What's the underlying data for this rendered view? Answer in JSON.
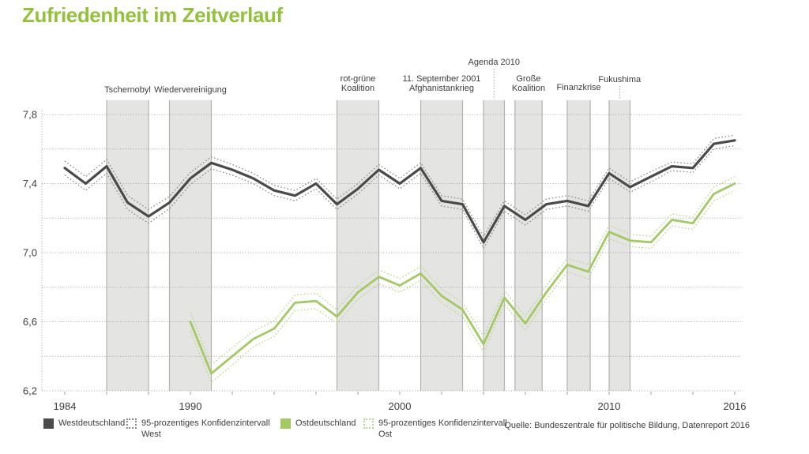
{
  "title": "Zufriedenheit im Zeitverlauf",
  "source": "Quelle: Bundeszentrale für politische Bildung, Datenreport 2016",
  "legend": {
    "items": [
      {
        "label": "Westdeutschland"
      },
      {
        "label": "95-prozentiges Konfidenzintervall",
        "label2": "West"
      },
      {
        "label": "Ostdeutschland"
      },
      {
        "label": "95-prozentiges Konfidenzintervall",
        "label2": "Ost"
      }
    ]
  },
  "chart_data": {
    "type": "line",
    "title": "Zufriedenheit im Zeitverlauf",
    "xlabel": "",
    "ylabel": "",
    "ylim": [
      6.2,
      7.8
    ],
    "ytick_step": 0.2,
    "grid": "dotted horizontal every 0.2",
    "legend_position": "bottom",
    "colors": {
      "title_green": "#94c13c",
      "west_line": "#4a4a48",
      "west_ci": "#8a8a88",
      "ost_line": "#a3c964",
      "ost_ci": "#b9d48b",
      "band_fill": "#e4e4e2",
      "band_edge": "#b3b3b1",
      "grid": "#a1a19f",
      "text": "#3d3d3c"
    },
    "x_years": [
      1984,
      1985,
      1986,
      1987,
      1988,
      1989,
      1990,
      1991,
      1992,
      1993,
      1994,
      1995,
      1996,
      1997,
      1998,
      1999,
      2000,
      2001,
      2002,
      2003,
      2004,
      2005,
      2006,
      2007,
      2008,
      2009,
      2010,
      2011,
      2012,
      2013,
      2014,
      2015,
      2016
    ],
    "yticks": [
      {
        "value": 7.8,
        "label": "7,8"
      },
      {
        "value": 7.4,
        "label": "7,4"
      },
      {
        "value": 7.0,
        "label": "7,0"
      },
      {
        "value": 6.6,
        "label": "6,6"
      },
      {
        "value": 6.2,
        "label": "6,2"
      }
    ],
    "xticks_labeled": [
      {
        "value": 1984,
        "label": "1984"
      },
      {
        "value": 1990,
        "label": "1990"
      },
      {
        "value": 2000,
        "label": "2000"
      },
      {
        "value": 2010,
        "label": "2010"
      },
      {
        "value": 2016,
        "label": "2016"
      }
    ],
    "xtick_minor_step": 2,
    "series": [
      {
        "name": "Westdeutschland",
        "color": "#4a4a48",
        "ci_color": "#8a8a88",
        "values": [
          7.49,
          7.4,
          7.5,
          7.29,
          7.21,
          7.29,
          7.43,
          7.52,
          7.48,
          7.43,
          7.36,
          7.33,
          7.4,
          7.28,
          7.37,
          7.48,
          7.4,
          7.49,
          7.3,
          7.28,
          7.06,
          7.27,
          7.19,
          7.28,
          7.3,
          7.27,
          7.46,
          7.38,
          7.44,
          7.5,
          7.49,
          7.63,
          7.65
        ],
        "ci_offsets": [
          0.04,
          0.04,
          0.04,
          0.04,
          0.04,
          0.035,
          0.035,
          0.035,
          0.03,
          0.03,
          0.03,
          0.03,
          0.03,
          0.03,
          0.03,
          0.03,
          0.03,
          0.03,
          0.03,
          0.03,
          0.035,
          0.03,
          0.03,
          0.03,
          0.03,
          0.03,
          0.03,
          0.03,
          0.03,
          0.025,
          0.025,
          0.03,
          0.03
        ]
      },
      {
        "name": "Ostdeutschland",
        "color": "#a3c964",
        "ci_color": "#b9d48b",
        "values": [
          null,
          null,
          null,
          null,
          null,
          null,
          6.6,
          6.3,
          6.4,
          6.5,
          6.56,
          6.71,
          6.72,
          6.63,
          6.77,
          6.86,
          6.81,
          6.88,
          6.75,
          6.67,
          6.47,
          6.74,
          6.59,
          6.77,
          6.93,
          6.89,
          7.12,
          7.07,
          7.06,
          7.19,
          7.17,
          7.34,
          7.4
        ],
        "ci_offsets": [
          null,
          null,
          null,
          null,
          null,
          null,
          0.055,
          0.05,
          0.05,
          0.045,
          0.045,
          0.045,
          0.045,
          0.04,
          0.04,
          0.04,
          0.04,
          0.04,
          0.04,
          0.04,
          0.045,
          0.04,
          0.04,
          0.04,
          0.04,
          0.04,
          0.04,
          0.035,
          0.035,
          0.035,
          0.035,
          0.04,
          0.04
        ]
      }
    ],
    "events": [
      {
        "lines": [
          "Tschernobyl"
        ],
        "band": [
          1986,
          1988
        ],
        "label_top": 109
      },
      {
        "lines": [
          "Wiedervereinigung"
        ],
        "band": [
          1989,
          1991
        ],
        "label_top": 109
      },
      {
        "lines": [
          "rot-grüne",
          "Koalition"
        ],
        "band": [
          1997,
          1999
        ],
        "label_top": 95
      },
      {
        "lines": [
          "11. September 2001",
          "Afghanistankrieg"
        ],
        "band": [
          2001,
          2003
        ],
        "label_top": 95
      },
      {
        "lines": [
          "Agenda 2010"
        ],
        "band": [
          2004,
          2005
        ],
        "label_top": 74,
        "connector": true
      },
      {
        "lines": [
          "Große",
          "Koalition"
        ],
        "band": [
          2005.5,
          2006.8
        ],
        "label_top": 95
      },
      {
        "lines": [
          "Finanzkrise"
        ],
        "band": [
          2008,
          2009.1
        ],
        "label_top": 106
      },
      {
        "lines": [
          "Fukushima"
        ],
        "band": [
          2010,
          2011
        ],
        "label_top": 96,
        "connector": true
      }
    ]
  }
}
